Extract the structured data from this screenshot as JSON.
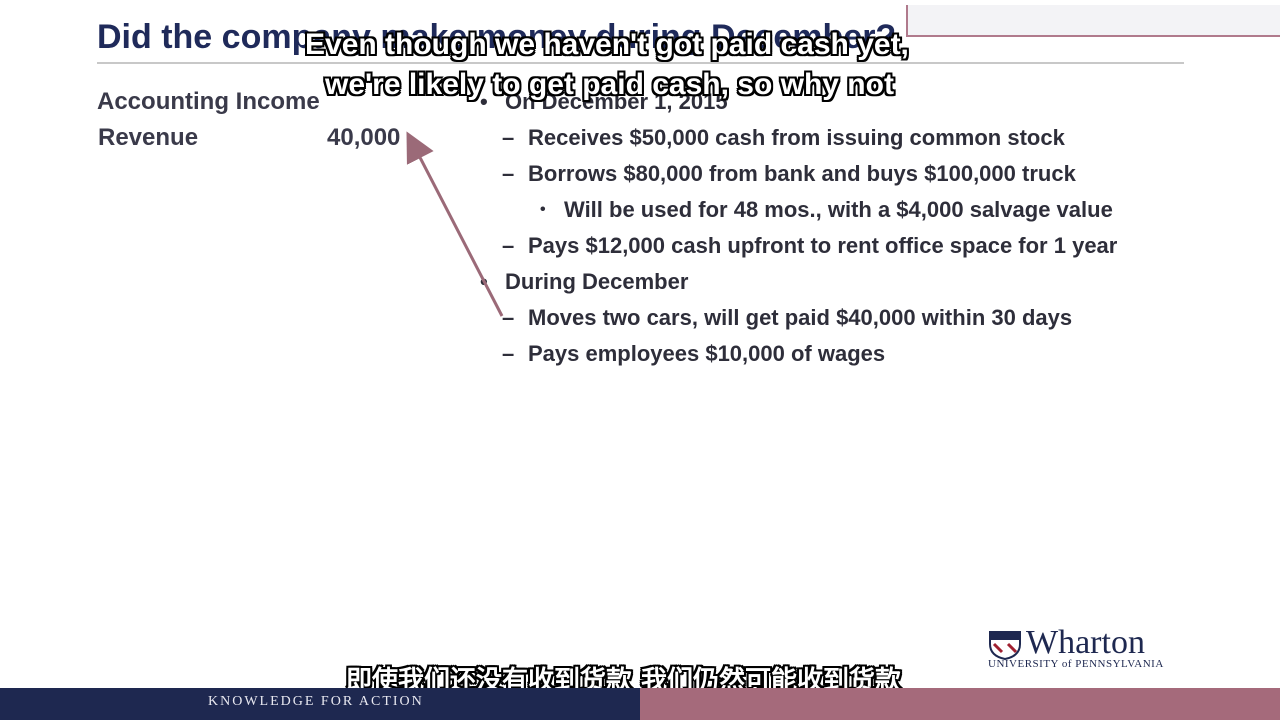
{
  "slide": {
    "title": "Did the company make money during December?",
    "left": {
      "heading": "Accounting Income",
      "revenue_label": "Revenue",
      "revenue_value": "40,000"
    },
    "bullets": [
      {
        "marker": "•",
        "text": "On December 1, 2015",
        "level": 0
      },
      {
        "marker": "–",
        "text": "Receives $50,000 cash from issuing common stock",
        "level": 1
      },
      {
        "marker": "–",
        "text": "Borrows $80,000 from bank and buys $100,000 truck",
        "level": 1
      },
      {
        "marker": "•",
        "text": "Will be used for 48 mos., with a $4,000 salvage value",
        "level": 2
      },
      {
        "marker": "–",
        "text": "Pays $12,000 cash upfront to rent office space for 1 year",
        "level": 1
      },
      {
        "marker": "•",
        "text": "During December",
        "level": 0
      },
      {
        "marker": "–",
        "text": "Moves two cars, will get paid $40,000 within 30 days",
        "level": 1
      },
      {
        "marker": "–",
        "text": "Pays employees $10,000 of wages",
        "level": 1
      }
    ]
  },
  "subtitles": {
    "english_line1": "Even though we haven't got paid cash yet,",
    "english_line2": "we're likely to get paid cash, so why not",
    "chinese": "即使我们还没有收到货款 我们仍然可能收到货款"
  },
  "footer": {
    "tagline": "KNOWLEDGE FOR ACTION",
    "logo_name": "Wharton",
    "logo_university": "UNIVERSITY of PENNSYLVANIA"
  },
  "colors": {
    "title": "#1f2a5a",
    "footer_left": "#1e2850",
    "footer_right": "#a56a7b",
    "arrow": "#9b6a78"
  }
}
